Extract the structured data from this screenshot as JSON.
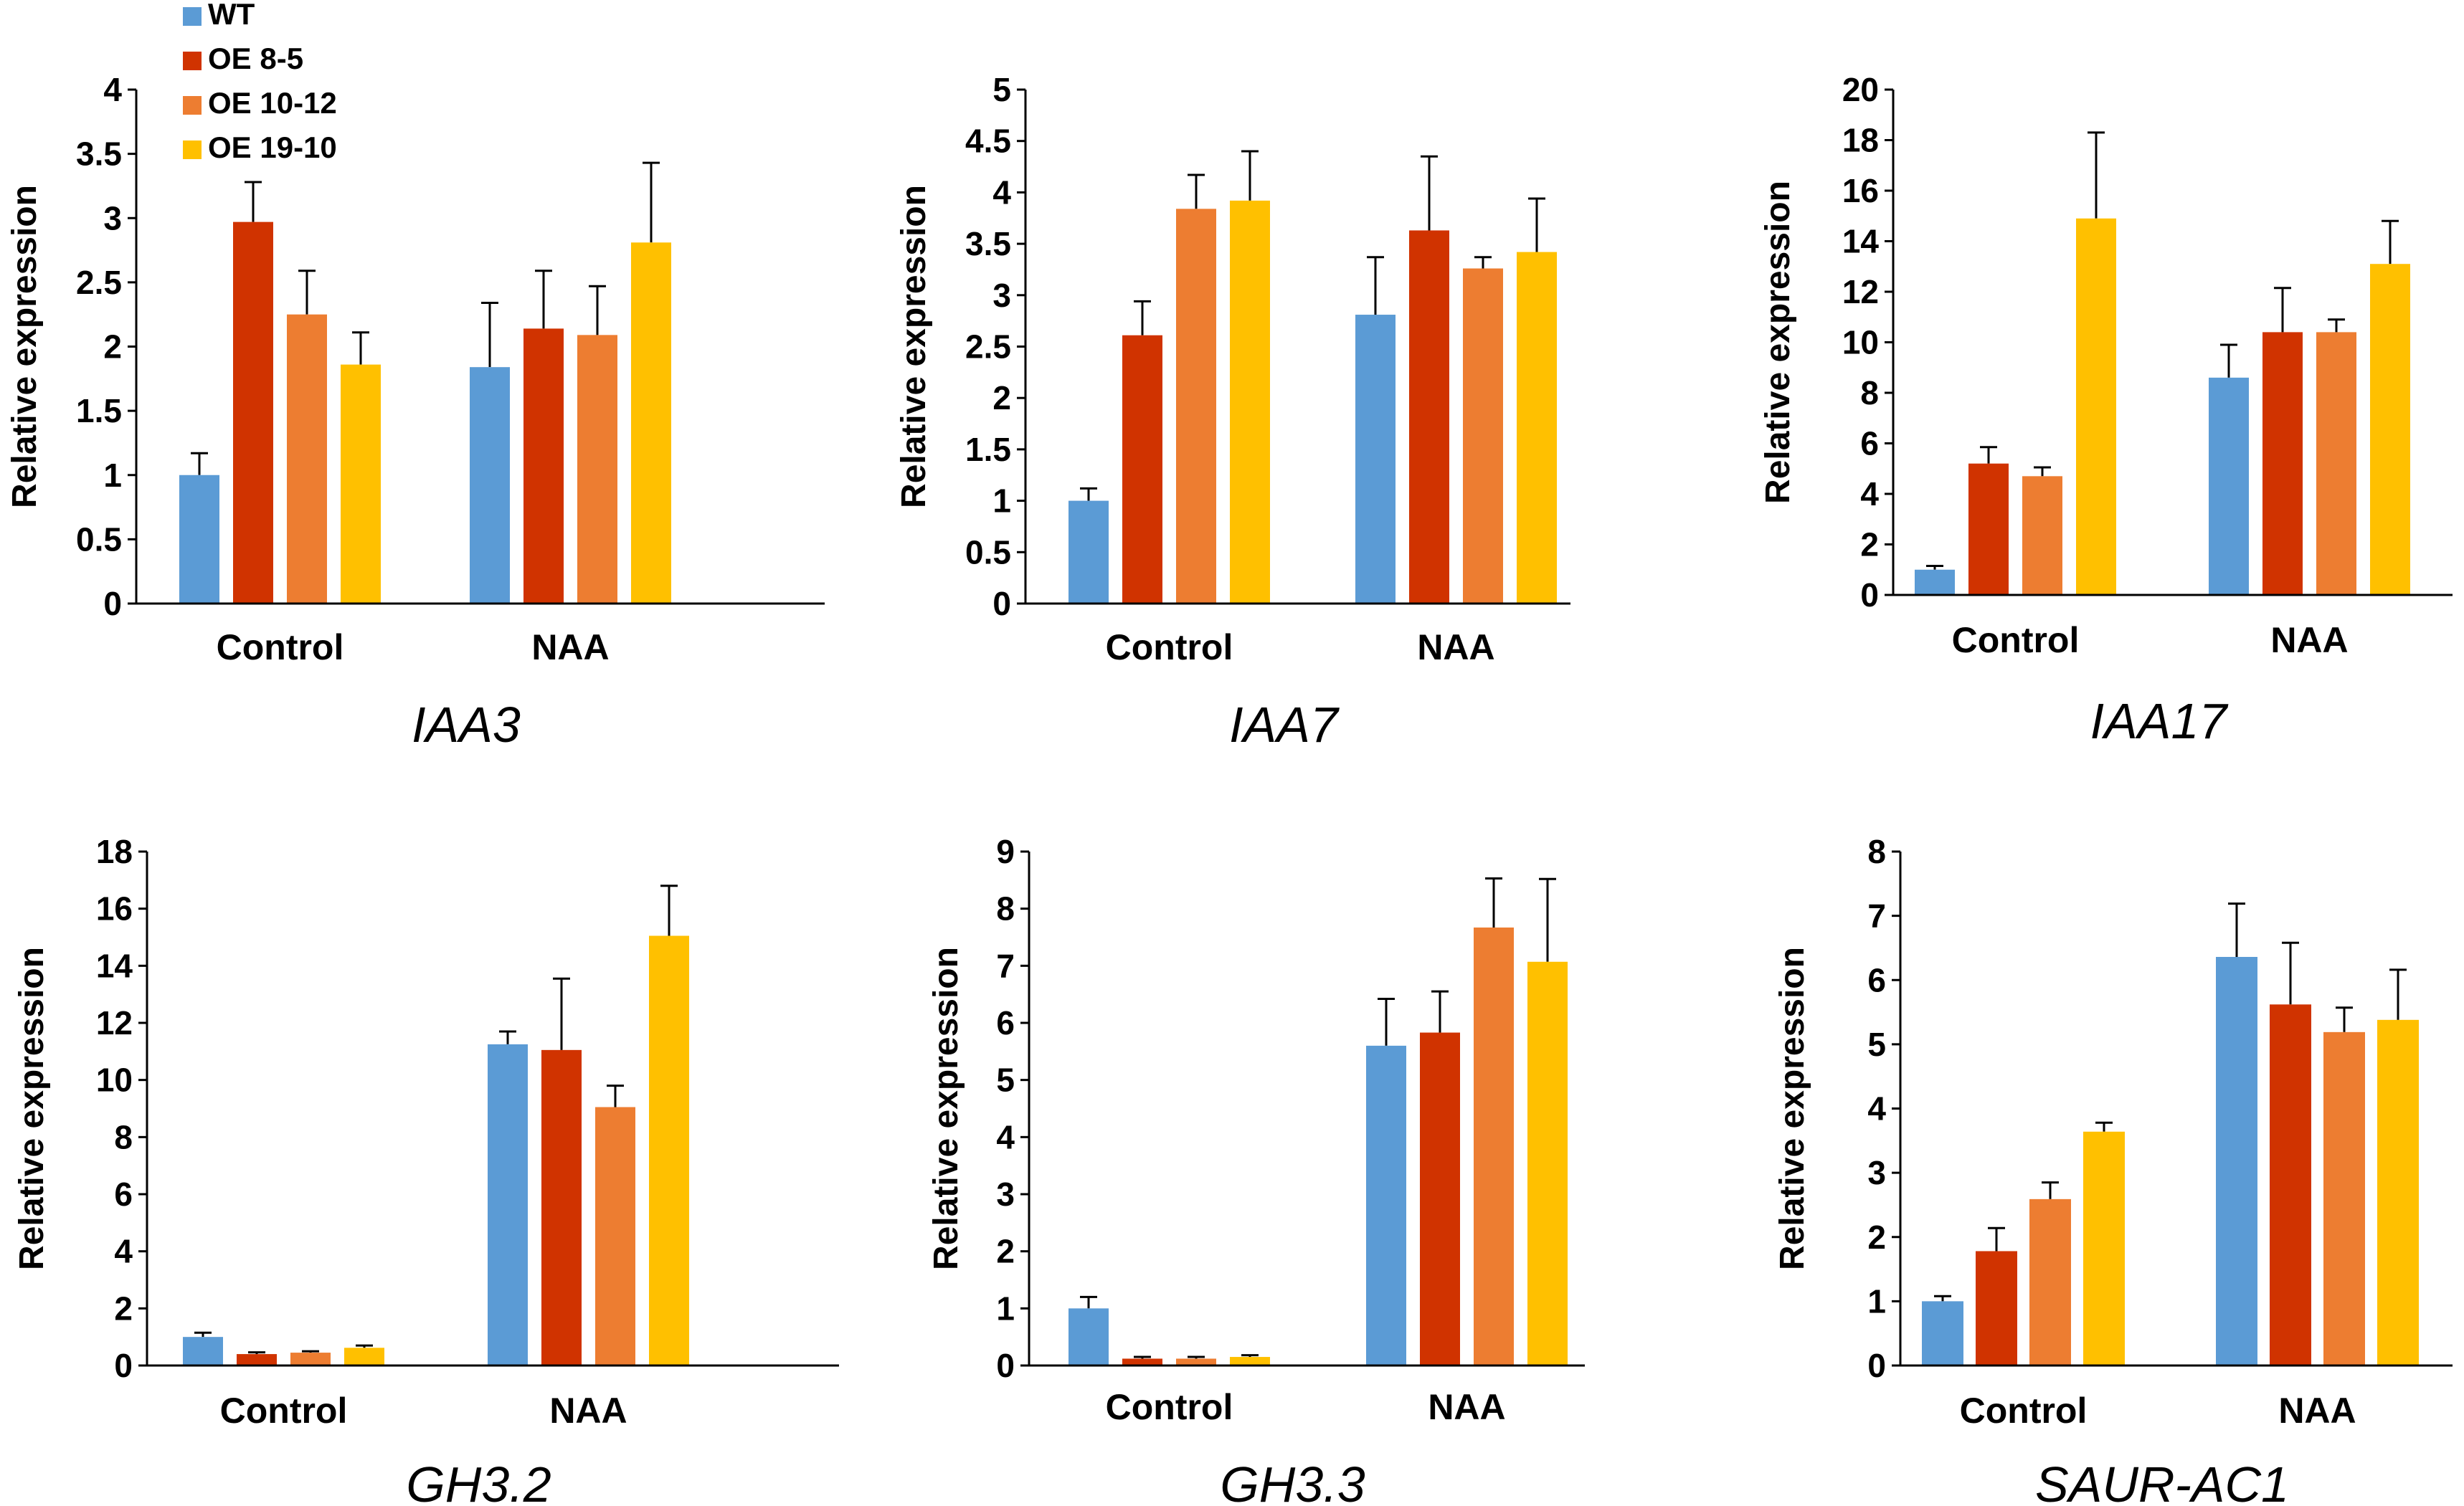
{
  "legend": [
    {
      "name": "WT",
      "color": "#5B9BD5"
    },
    {
      "name": "OE 8-5",
      "color": "#D03300"
    },
    {
      "name": "OE 10-12",
      "color": "#ED7D31"
    },
    {
      "name": "OE 19-10",
      "color": "#FFC000"
    }
  ],
  "chart_data": [
    {
      "type": "bar",
      "title": "IAA3",
      "ylabel": "Relative expression",
      "categories": [
        "Control",
        "NAA"
      ],
      "ylim": [
        0,
        4
      ],
      "yticks": [
        "0",
        "0.5",
        "1",
        "1.5",
        "2",
        "2.5",
        "3",
        "3.5",
        "4"
      ],
      "series": [
        {
          "name": "WT",
          "values": [
            1.0,
            1.84
          ],
          "errors": [
            0.17,
            0.5
          ]
        },
        {
          "name": "OE 8-5",
          "values": [
            2.97,
            2.14
          ],
          "errors": [
            0.31,
            0.45
          ]
        },
        {
          "name": "OE 10-12",
          "values": [
            2.25,
            2.09
          ],
          "errors": [
            0.34,
            0.38
          ]
        },
        {
          "name": "OE 19-10",
          "values": [
            1.86,
            2.81
          ],
          "errors": [
            0.25,
            0.62
          ]
        }
      ]
    },
    {
      "type": "bar",
      "title": "IAA7",
      "ylabel": "Relative expression",
      "categories": [
        "Control",
        "NAA"
      ],
      "ylim": [
        0,
        5
      ],
      "yticks": [
        "0",
        "0.5",
        "1",
        "1.5",
        "2",
        "2.5",
        "3",
        "3.5",
        "4",
        "4.5",
        "5"
      ],
      "series": [
        {
          "name": "WT",
          "values": [
            1.0,
            2.81
          ],
          "errors": [
            0.12,
            0.56
          ]
        },
        {
          "name": "OE 8-5",
          "values": [
            2.61,
            3.63
          ],
          "errors": [
            0.33,
            0.72
          ]
        },
        {
          "name": "OE 10-12",
          "values": [
            3.84,
            3.26
          ],
          "errors": [
            0.33,
            0.11
          ]
        },
        {
          "name": "OE 19-10",
          "values": [
            3.92,
            3.42
          ],
          "errors": [
            0.48,
            0.52
          ]
        }
      ]
    },
    {
      "type": "bar",
      "title": "IAA17",
      "ylabel": "Relative expression",
      "categories": [
        "Control",
        "NAA"
      ],
      "ylim": [
        0,
        20
      ],
      "yticks": [
        "0",
        "2",
        "4",
        "6",
        "8",
        "10",
        "12",
        "14",
        "16",
        "18",
        "20"
      ],
      "series": [
        {
          "name": "WT",
          "values": [
            1.0,
            8.6
          ],
          "errors": [
            0.15,
            1.3
          ]
        },
        {
          "name": "OE 8-5",
          "values": [
            5.2,
            10.4
          ],
          "errors": [
            0.65,
            1.75
          ]
        },
        {
          "name": "OE 10-12",
          "values": [
            4.7,
            10.4
          ],
          "errors": [
            0.35,
            0.5
          ]
        },
        {
          "name": "OE 19-10",
          "values": [
            14.9,
            13.1
          ],
          "errors": [
            3.4,
            1.7
          ]
        }
      ]
    },
    {
      "type": "bar",
      "title": "GH3.2",
      "ylabel": "Relative expression",
      "categories": [
        "Control",
        "NAA"
      ],
      "ylim": [
        0,
        18
      ],
      "yticks": [
        "0",
        "2",
        "4",
        "6",
        "8",
        "10",
        "12",
        "14",
        "16",
        "18"
      ],
      "series": [
        {
          "name": "WT",
          "values": [
            1.0,
            11.25
          ],
          "errors": [
            0.15,
            0.45
          ]
        },
        {
          "name": "OE 8-5",
          "values": [
            0.4,
            11.05
          ],
          "errors": [
            0.06,
            2.5
          ]
        },
        {
          "name": "OE 10-12",
          "values": [
            0.45,
            9.05
          ],
          "errors": [
            0.05,
            0.75
          ]
        },
        {
          "name": "OE 19-10",
          "values": [
            0.62,
            15.05
          ],
          "errors": [
            0.08,
            1.75
          ]
        }
      ]
    },
    {
      "type": "bar",
      "title": "GH3.3",
      "ylabel": "Relative expression",
      "categories": [
        "Control",
        "NAA"
      ],
      "ylim": [
        0,
        9
      ],
      "yticks": [
        "0",
        "1",
        "2",
        "3",
        "4",
        "5",
        "6",
        "7",
        "8",
        "9"
      ],
      "series": [
        {
          "name": "WT",
          "values": [
            1.0,
            5.6
          ],
          "errors": [
            0.2,
            0.82
          ]
        },
        {
          "name": "OE 8-5",
          "values": [
            0.12,
            5.83
          ],
          "errors": [
            0.03,
            0.72
          ]
        },
        {
          "name": "OE 10-12",
          "values": [
            0.12,
            7.67
          ],
          "errors": [
            0.03,
            0.86
          ]
        },
        {
          "name": "OE 19-10",
          "values": [
            0.15,
            7.07
          ],
          "errors": [
            0.03,
            1.45
          ]
        }
      ]
    },
    {
      "type": "bar",
      "title": "SAUR-AC1",
      "ylabel": "Relative expression",
      "categories": [
        "Control",
        "NAA"
      ],
      "ylim": [
        0,
        8
      ],
      "yticks": [
        "0",
        "1",
        "2",
        "3",
        "4",
        "5",
        "6",
        "7",
        "8"
      ],
      "series": [
        {
          "name": "WT",
          "values": [
            1.0,
            6.36
          ],
          "errors": [
            0.08,
            0.83
          ]
        },
        {
          "name": "OE 8-5",
          "values": [
            1.78,
            5.62
          ],
          "errors": [
            0.36,
            0.96
          ]
        },
        {
          "name": "OE 10-12",
          "values": [
            2.59,
            5.19
          ],
          "errors": [
            0.26,
            0.38
          ]
        },
        {
          "name": "OE 19-10",
          "values": [
            3.64,
            5.38
          ],
          "errors": [
            0.14,
            0.78
          ]
        }
      ]
    }
  ]
}
